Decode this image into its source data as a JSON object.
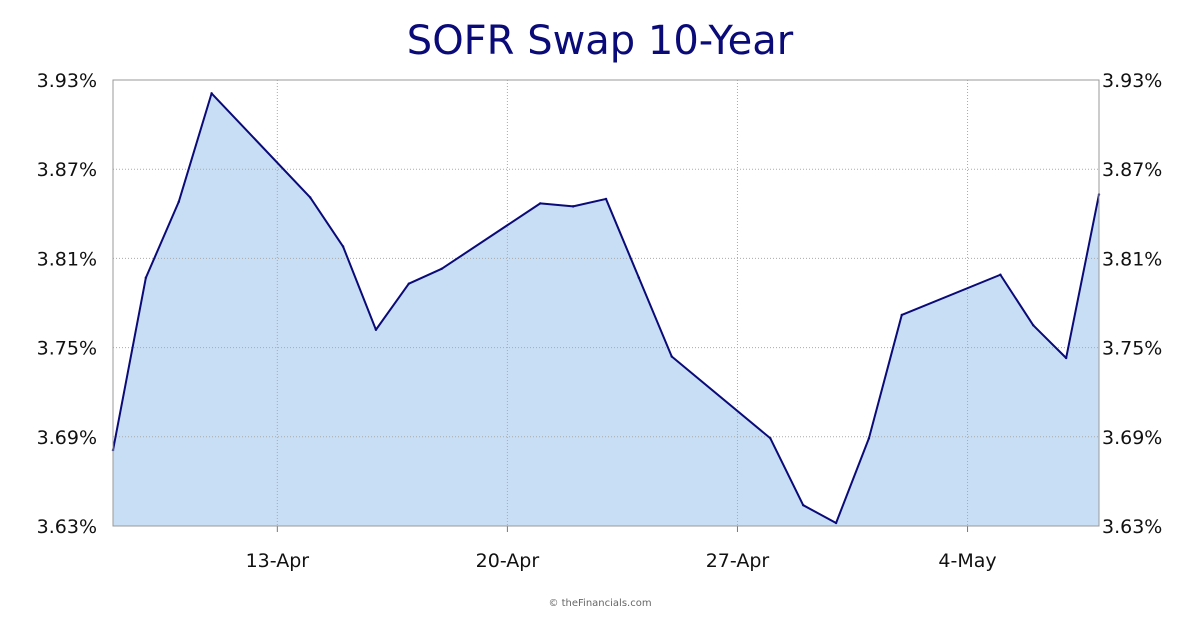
{
  "chart_data": {
    "type": "area",
    "title": "SOFR Swap 10-Year",
    "xlabel": "",
    "ylabel": "",
    "y_ticks": [
      "3.63%",
      "3.69%",
      "3.75%",
      "3.81%",
      "3.87%",
      "3.93%"
    ],
    "y_tick_values": [
      3.63,
      3.69,
      3.75,
      3.81,
      3.87,
      3.93
    ],
    "ylim": [
      3.63,
      3.93
    ],
    "x_ticks": [
      "13-Apr",
      "20-Apr",
      "27-Apr",
      "4-May"
    ],
    "x_tick_dates": [
      "2026-04-13",
      "2026-04-20",
      "2026-04-27",
      "2026-05-04"
    ],
    "xlim": [
      "2026-04-08",
      "2026-05-08"
    ],
    "grid": true,
    "series": [
      {
        "points": [
          [
            "2026-04-08",
            3.681
          ],
          [
            "2026-04-09",
            3.797
          ],
          [
            "2026-04-10",
            3.848
          ],
          [
            "2026-04-11",
            3.921
          ],
          [
            "2026-04-14",
            3.851
          ],
          [
            "2026-04-15",
            3.818
          ],
          [
            "2026-04-16",
            3.762
          ],
          [
            "2026-04-17",
            3.793
          ],
          [
            "2026-04-18",
            3.803
          ],
          [
            "2026-04-21",
            3.847
          ],
          [
            "2026-04-22",
            3.845
          ],
          [
            "2026-04-23",
            3.85
          ],
          [
            "2026-04-24",
            3.797
          ],
          [
            "2026-04-25",
            3.744
          ],
          [
            "2026-04-28",
            3.689
          ],
          [
            "2026-04-29",
            3.644
          ],
          [
            "2026-04-30",
            3.632
          ],
          [
            "2026-05-01",
            3.689
          ],
          [
            "2026-05-02",
            3.772
          ],
          [
            "2026-05-05",
            3.799
          ],
          [
            "2026-05-06",
            3.765
          ],
          [
            "2026-05-07",
            3.743
          ],
          [
            "2026-05-08",
            3.853
          ]
        ]
      }
    ],
    "colors": {
      "line": "#0a0a78",
      "fill": "#c8def5",
      "grid": "#aaaaaa"
    }
  },
  "credit": "© theFinancials.com"
}
